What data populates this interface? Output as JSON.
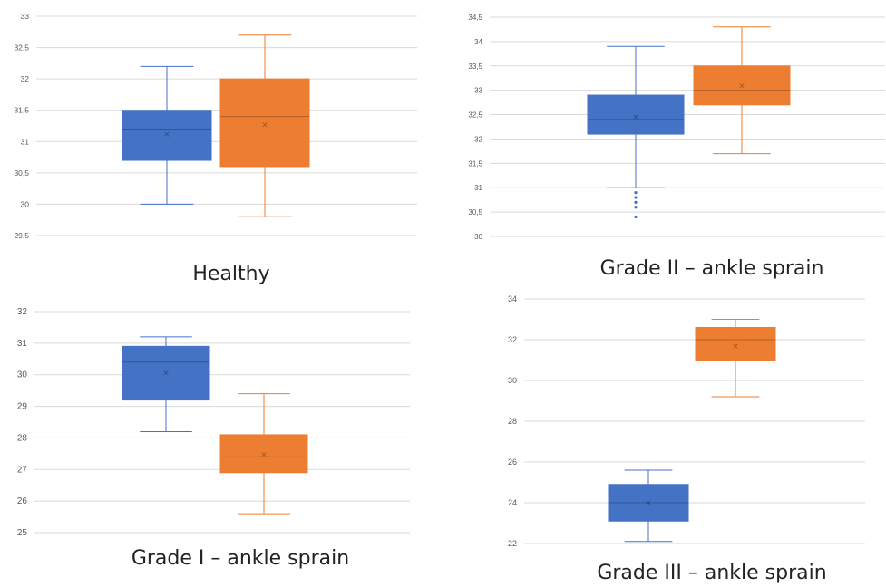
{
  "colors": {
    "blue": "#4472C4",
    "orange": "#ED7D31",
    "grid": "#D9D9D9",
    "tick_text": "#595959"
  },
  "captions": [
    "Healthy",
    "Grade II – ankle sprain",
    "Grade I – ankle sprain",
    "Grade III – ankle sprain"
  ],
  "chart_data": [
    {
      "type": "box",
      "title": "Healthy",
      "ylim": [
        29.5,
        33
      ],
      "yticks": [
        "29,5",
        "30",
        "30,5",
        "31",
        "31,5",
        "32",
        "32,5",
        "33"
      ],
      "grid": true,
      "series": [
        {
          "color": "#4472C4",
          "min": 30.0,
          "q1": 30.7,
          "median": 31.2,
          "q3": 31.5,
          "max": 32.2,
          "mean": 31.12,
          "outliers": []
        },
        {
          "color": "#ED7D31",
          "min": 29.8,
          "q1": 30.6,
          "median": 31.4,
          "q3": 32.0,
          "max": 32.7,
          "mean": 31.27,
          "outliers": []
        }
      ]
    },
    {
      "type": "box",
      "title": "Grade II – ankle sprain",
      "ylim": [
        30,
        34.5
      ],
      "yticks": [
        "30",
        "30,5",
        "31",
        "31,5",
        "32",
        "32,5",
        "33",
        "33,5",
        "34",
        "34,5"
      ],
      "grid": true,
      "series": [
        {
          "color": "#4472C4",
          "min": 31.0,
          "q1": 32.1,
          "median": 32.4,
          "q3": 32.9,
          "max": 33.9,
          "mean": 32.45,
          "outliers": [
            30.4,
            30.6,
            30.7,
            30.8,
            30.9
          ]
        },
        {
          "color": "#ED7D31",
          "min": 31.7,
          "q1": 32.7,
          "median": 33.0,
          "q3": 33.5,
          "max": 34.3,
          "mean": 33.1,
          "outliers": []
        }
      ]
    },
    {
      "type": "box",
      "title": "Grade I – ankle sprain",
      "ylim": [
        25,
        32
      ],
      "yticks": [
        "25",
        "26",
        "27",
        "28",
        "29",
        "30",
        "31",
        "32"
      ],
      "grid": true,
      "series": [
        {
          "color": "#4472C4",
          "min": 28.2,
          "q1": 29.2,
          "median": 30.4,
          "q3": 30.9,
          "max": 31.2,
          "mean": 30.07,
          "outliers": []
        },
        {
          "color": "#ED7D31",
          "min": 25.6,
          "q1": 26.9,
          "median": 27.4,
          "q3": 28.1,
          "max": 29.4,
          "mean": 27.48,
          "outliers": []
        }
      ]
    },
    {
      "type": "box",
      "title": "Grade III – ankle sprain",
      "ylim": [
        22,
        34
      ],
      "yticks": [
        "22",
        "24",
        "26",
        "28",
        "30",
        "32",
        "34"
      ],
      "grid": true,
      "series": [
        {
          "color": "#4472C4",
          "min": 22.1,
          "q1": 23.1,
          "median": 24.0,
          "q3": 24.9,
          "max": 25.6,
          "mean": 24.0,
          "outliers": []
        },
        {
          "color": "#ED7D31",
          "min": 29.2,
          "q1": 31.0,
          "median": 32.0,
          "q3": 32.6,
          "max": 33.0,
          "mean": 31.7,
          "outliers": []
        }
      ]
    }
  ]
}
